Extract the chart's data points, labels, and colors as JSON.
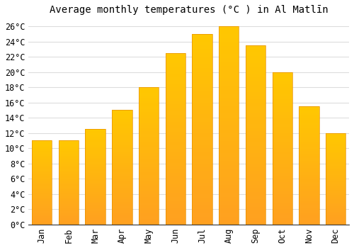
{
  "title": "Average monthly temperatures (°C ) in Al Matlīn",
  "months": [
    "Jan",
    "Feb",
    "Mar",
    "Apr",
    "May",
    "Jun",
    "Jul",
    "Aug",
    "Sep",
    "Oct",
    "Nov",
    "Dec"
  ],
  "values": [
    11,
    11,
    12.5,
    15,
    18,
    22.5,
    25,
    26,
    23.5,
    20,
    15.5,
    12
  ],
  "bar_color_top": "#FFC000",
  "bar_color_bottom": "#FFA020",
  "bar_edge_color": "#E89000",
  "background_color": "#FFFFFF",
  "grid_color": "#DDDDDD",
  "ylim": [
    0,
    27
  ],
  "yticks": [
    0,
    2,
    4,
    6,
    8,
    10,
    12,
    14,
    16,
    18,
    20,
    22,
    24,
    26
  ],
  "title_fontsize": 10,
  "tick_fontsize": 8.5,
  "font_family": "monospace"
}
